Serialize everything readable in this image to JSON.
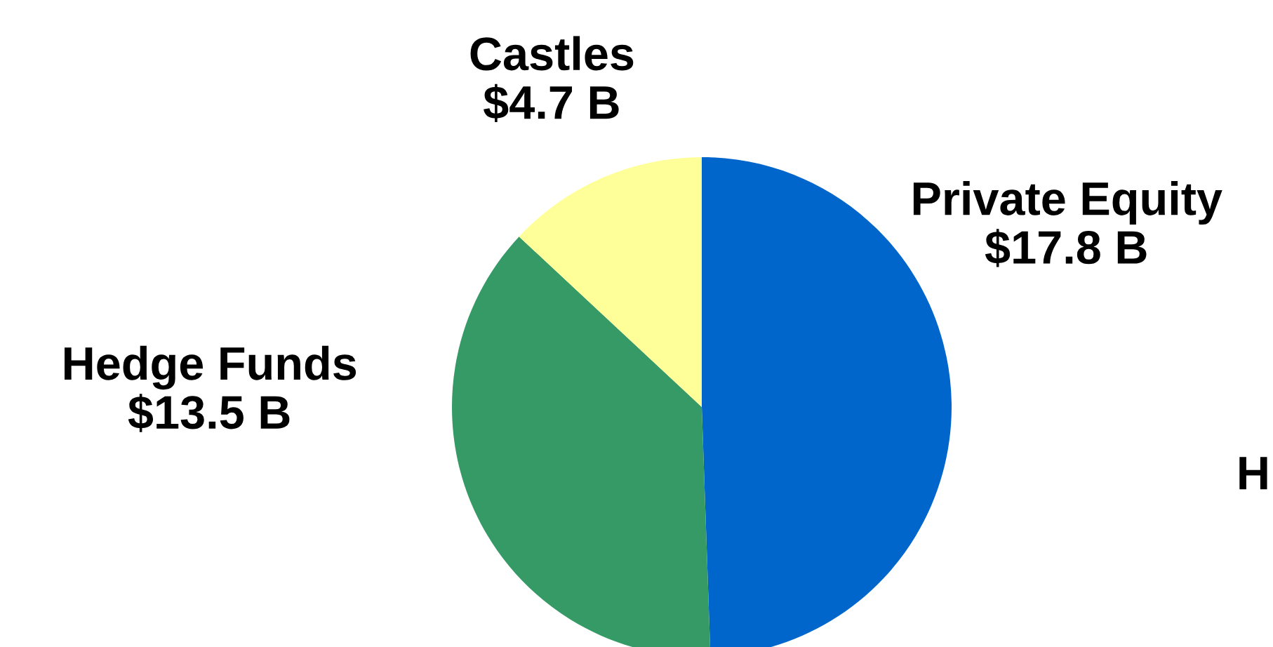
{
  "chart_data": {
    "type": "pie",
    "categories": [
      "Private Equity",
      "Hedge Funds",
      "Castles"
    ],
    "values": [
      17.8,
      13.5,
      4.7
    ],
    "value_labels": [
      "$17.8 B",
      "$13.5 B",
      "$4.7 B"
    ],
    "colors": [
      "#0066cc",
      "#359a66",
      "#ffff99"
    ],
    "annotations": [
      "H"
    ]
  }
}
